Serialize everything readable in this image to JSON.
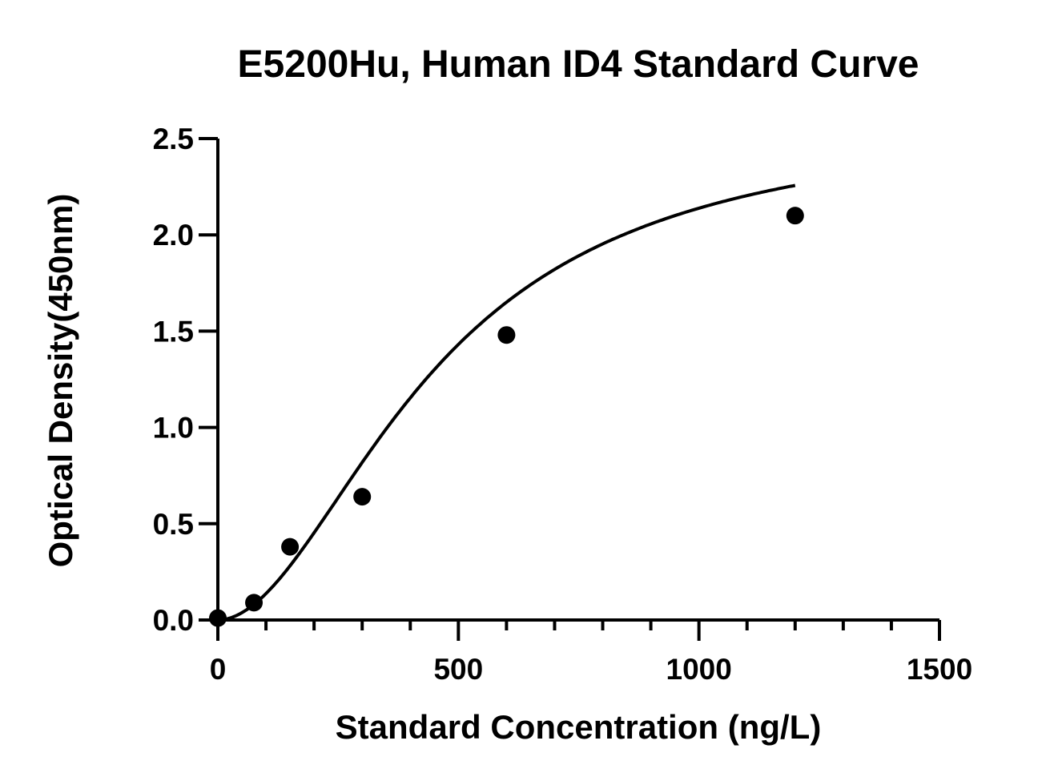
{
  "chart_data": {
    "type": "scatter",
    "title": "E5200Hu, Human ID4 Standard Curve",
    "xlabel": "Standard Concentration (ng/L)",
    "ylabel": "Optical Density(450nm)",
    "xlim": [
      0,
      1500
    ],
    "ylim": [
      0,
      2.5
    ],
    "x_ticks": [
      0,
      500,
      1000,
      1500
    ],
    "x_tick_labels": [
      "0",
      "500",
      "1000",
      "1500"
    ],
    "x_minor_step": 100,
    "y_ticks": [
      0,
      0.5,
      1.0,
      1.5,
      2.0,
      2.5
    ],
    "y_tick_labels": [
      "0.0",
      "0.5",
      "1.0",
      "1.5",
      "2.0",
      "2.5"
    ],
    "grid": false,
    "series": [
      {
        "x": [
          0,
          75,
          150,
          300,
          600,
          1200
        ],
        "y": [
          0.01,
          0.09,
          0.38,
          0.64,
          1.48,
          2.1
        ],
        "marker": "circle",
        "color": "#000000",
        "fit": "4PL",
        "fit_params": {
          "a": 0.0,
          "b": 1.92,
          "c": 450,
          "d": 2.6
        }
      }
    ]
  }
}
